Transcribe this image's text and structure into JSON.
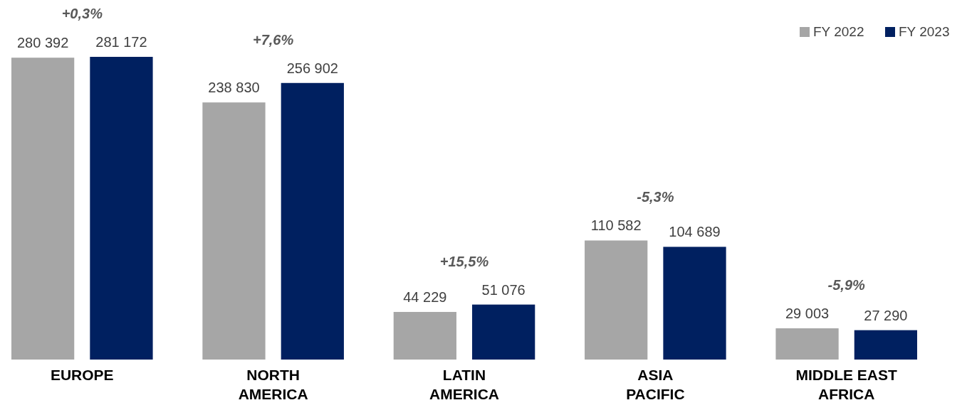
{
  "chart_data": {
    "type": "bar",
    "categories": [
      "EUROPE",
      "NORTH AMERICA",
      "LATIN AMERICA",
      "ASIA PACIFIC",
      "MIDDLE EAST AFRICA"
    ],
    "series": [
      {
        "name": "FY 2022",
        "color": "#a6a6a6",
        "values": [
          280392,
          238830,
          44229,
          110582,
          29003
        ]
      },
      {
        "name": "FY 2023",
        "color": "#002060",
        "values": [
          281172,
          256902,
          51076,
          104689,
          27290
        ]
      }
    ],
    "data_labels": true,
    "legend": "top right",
    "annotations": [
      "+0,3%",
      "+7,6%",
      "+15,5%",
      "-5,3%",
      "-5,9%"
    ]
  }
}
